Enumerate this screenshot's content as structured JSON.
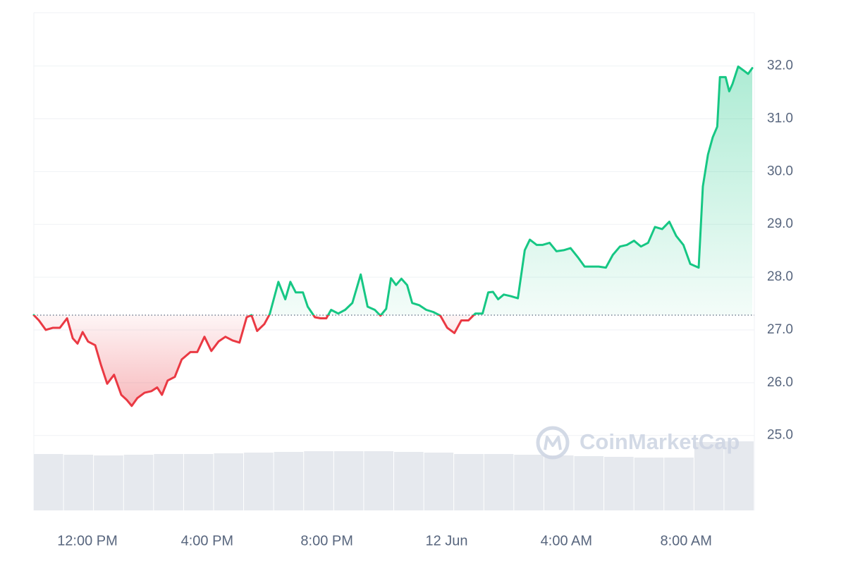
{
  "chart_data": {
    "type": "line",
    "x": [
      -1.79,
      -1.62,
      -1.39,
      -1.15,
      -0.92,
      -0.68,
      -0.49,
      -0.33,
      -0.16,
      0.02,
      0.26,
      0.45,
      0.66,
      0.89,
      1.13,
      1.32,
      1.48,
      1.67,
      1.91,
      2.14,
      2.33,
      2.49,
      2.68,
      2.92,
      3.15,
      3.44,
      3.67,
      3.91,
      4.14,
      4.38,
      4.61,
      4.85,
      5.08,
      5.32,
      5.48,
      5.67,
      5.91,
      6.09,
      6.38,
      6.61,
      6.78,
      6.96,
      7.2,
      7.36,
      7.6,
      7.79,
      7.98,
      8.14,
      8.38,
      8.61,
      8.85,
      9.13,
      9.36,
      9.6,
      9.79,
      9.98,
      10.14,
      10.31,
      10.49,
      10.68,
      10.85,
      11.08,
      11.32,
      11.55,
      11.79,
      12.02,
      12.26,
      12.49,
      12.73,
      12.96,
      13.2,
      13.39,
      13.55,
      13.72,
      13.91,
      14.14,
      14.38,
      14.61,
      14.78,
      15.01,
      15.2,
      15.44,
      15.67,
      15.91,
      16.14,
      16.38,
      16.61,
      16.85,
      17.08,
      17.32,
      17.55,
      17.79,
      18.02,
      18.26,
      18.49,
      18.73,
      18.96,
      19.2,
      19.44,
      19.67,
      19.91,
      20.14,
      20.42,
      20.56,
      20.73,
      20.89,
      21.04,
      21.13,
      21.32,
      21.44,
      21.55,
      21.74,
      21.91,
      22.07,
      22.21
    ],
    "values": [
      27.28,
      27.18,
      27.0,
      27.04,
      27.04,
      27.22,
      26.84,
      26.74,
      26.96,
      26.78,
      26.71,
      26.34,
      25.98,
      26.15,
      25.77,
      25.67,
      25.56,
      25.71,
      25.81,
      25.84,
      25.91,
      25.77,
      26.04,
      26.11,
      26.44,
      26.58,
      26.58,
      26.87,
      26.6,
      26.78,
      26.87,
      26.8,
      26.76,
      27.24,
      27.28,
      26.98,
      27.11,
      27.3,
      27.91,
      27.58,
      27.91,
      27.71,
      27.71,
      27.44,
      27.24,
      27.22,
      27.22,
      27.38,
      27.31,
      27.38,
      27.51,
      28.05,
      27.44,
      27.38,
      27.27,
      27.4,
      27.98,
      27.85,
      27.97,
      27.85,
      27.51,
      27.47,
      27.38,
      27.34,
      27.27,
      27.04,
      26.94,
      27.18,
      27.18,
      27.31,
      27.31,
      27.71,
      27.72,
      27.58,
      27.67,
      27.64,
      27.6,
      28.51,
      28.71,
      28.61,
      28.61,
      28.65,
      28.49,
      28.51,
      28.55,
      28.38,
      28.2,
      28.2,
      28.2,
      28.18,
      28.42,
      28.58,
      28.61,
      28.69,
      28.58,
      28.65,
      28.95,
      28.91,
      29.05,
      28.78,
      28.61,
      28.25,
      28.18,
      29.72,
      30.32,
      30.65,
      30.85,
      31.79,
      31.79,
      31.52,
      31.66,
      31.99,
      31.92,
      31.85,
      31.96
    ],
    "baseline": 27.28,
    "up_color": "#16c784",
    "down_color": "#ea3943",
    "xlim": [
      -1.79,
      22.28
    ],
    "xticks": [
      {
        "value": 0,
        "label": "12:00 PM"
      },
      {
        "value": 4,
        "label": "4:00 PM"
      },
      {
        "value": 8,
        "label": "8:00 PM"
      },
      {
        "value": 12,
        "label": "12 Jun"
      },
      {
        "value": 16,
        "label": "4:00 AM"
      },
      {
        "value": 20,
        "label": "8:00 AM"
      }
    ],
    "ylim": [
      23.58,
      33.01
    ],
    "yticks": [
      {
        "value": 25,
        "label": "25.0"
      },
      {
        "value": 26,
        "label": "26.0"
      },
      {
        "value": 27,
        "label": "27.0"
      },
      {
        "value": 28,
        "label": "28.0"
      },
      {
        "value": 29,
        "label": "29.0"
      },
      {
        "value": 30,
        "label": "30.0"
      },
      {
        "value": 31,
        "label": "31.0"
      },
      {
        "value": 32,
        "label": "32.0"
      }
    ],
    "grid": true,
    "volume": {
      "values": [
        80,
        79,
        78,
        79,
        80,
        80,
        81,
        82,
        83,
        84,
        84,
        84,
        83,
        82,
        80,
        80,
        79,
        78,
        77,
        76,
        75,
        75,
        97,
        98
      ],
      "ylim": [
        0,
        100
      ],
      "color": "#e6e9ee"
    },
    "watermark": "CoinMarketCap"
  }
}
